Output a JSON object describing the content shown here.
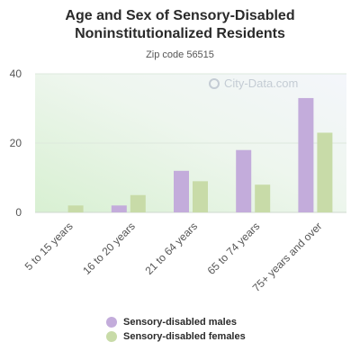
{
  "title_line1": "Age and Sex of Sensory-Disabled",
  "title_line2": "Noninstitutionalized Residents",
  "subtitle": "Zip code 56515",
  "watermark": "City-Data.com",
  "colors": {
    "males": "#c3acdb",
    "females": "#c8dba8",
    "grid": "#dde8dd",
    "axis_text": "#555555"
  },
  "chart_data": {
    "type": "bar",
    "categories": [
      "5 to 15 years",
      "16 to 20 years",
      "21 to 64 years",
      "65 to 74 years",
      "75+ years and over"
    ],
    "series": [
      {
        "name": "Sensory-disabled males",
        "values": [
          0,
          2,
          12,
          18,
          33
        ]
      },
      {
        "name": "Sensory-disabled females",
        "values": [
          2,
          5,
          9,
          8,
          23
        ]
      }
    ],
    "ylim": [
      0,
      40
    ],
    "yticks": [
      0,
      20,
      40
    ],
    "grid": true,
    "legend": "bottom"
  }
}
